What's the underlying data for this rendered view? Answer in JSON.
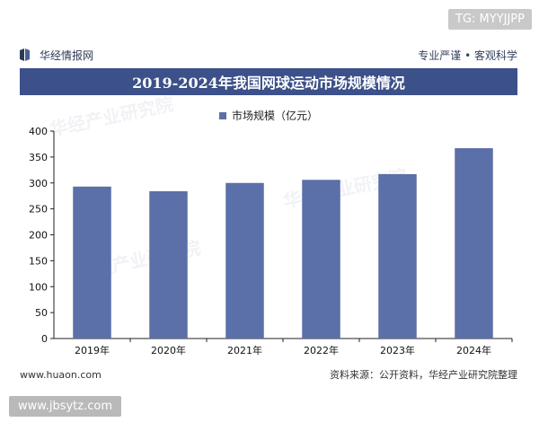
{
  "tags": {
    "top_right": "TG: MYYJJPP",
    "bottom_left": "www.jbsytz.com"
  },
  "header": {
    "brand": "华经情报网",
    "tagline": "专业严谨 • 客观科学",
    "title": "2019-2024年我国网球运动市场规模情况"
  },
  "footer": {
    "website": "www.huaon.com",
    "source": "资料来源：公开资料，华经产业研究院整理"
  },
  "watermark": "华经产业研究院",
  "colors": {
    "bar": "#5b6fa8",
    "title_bg": "#3c5089"
  },
  "chart_data": {
    "type": "bar",
    "title": "2019-2024年我国网球运动市场规模情况",
    "categories": [
      "2019年",
      "2020年",
      "2021年",
      "2022年",
      "2023年",
      "2024年"
    ],
    "series": [
      {
        "name": "市场规模（亿元）",
        "values": [
          293,
          284,
          300,
          306,
          317,
          367
        ]
      }
    ],
    "ylim": [
      0,
      400
    ],
    "yticks": [
      0,
      50,
      100,
      150,
      200,
      250,
      300,
      350,
      400
    ],
    "grid": false,
    "legend": "top-center"
  }
}
